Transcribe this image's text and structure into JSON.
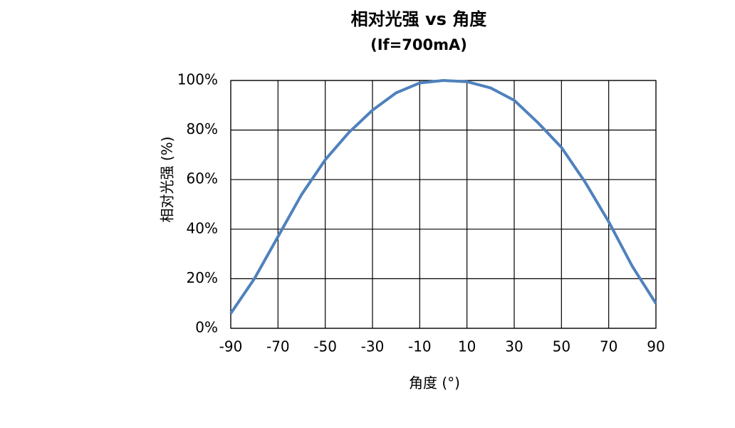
{
  "chart_data": {
    "type": "line",
    "title": "相对光强 vs 角度",
    "subtitle": "(If=700mA)",
    "x_label": "角度 (°)",
    "y_label": "相对光强 (%)",
    "x": [
      -90,
      -80,
      -70,
      -60,
      -50,
      -40,
      -30,
      -20,
      -10,
      0,
      10,
      20,
      30,
      40,
      50,
      60,
      70,
      80,
      90
    ],
    "series": [
      {
        "name": "相对光强",
        "color": "#4f81bd",
        "values": [
          6,
          20,
          37,
          54,
          68,
          79,
          88,
          95,
          99,
          100,
          99.5,
          97,
          92,
          83,
          73,
          59,
          43,
          25,
          10
        ]
      }
    ],
    "xlim": [
      -90,
      90
    ],
    "xticks": [
      -90,
      -70,
      -50,
      -30,
      -10,
      10,
      30,
      50,
      70,
      90
    ],
    "ylim": [
      0,
      100
    ],
    "yticks": [
      {
        "value": 0,
        "label": "0%"
      },
      {
        "value": 20,
        "label": "20%"
      },
      {
        "value": 40,
        "label": "40%"
      },
      {
        "value": 60,
        "label": "60%"
      },
      {
        "value": 80,
        "label": "80%"
      },
      {
        "value": 100,
        "label": "100%"
      }
    ],
    "grid": true
  }
}
